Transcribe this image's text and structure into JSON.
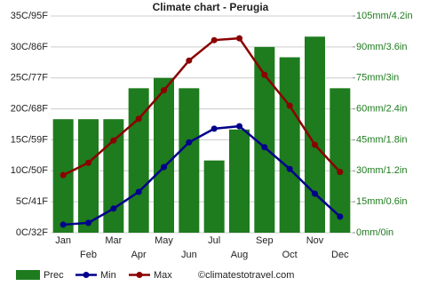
{
  "chart_data": {
    "type": "combo",
    "title": "Climate chart - Perugia",
    "categories": [
      "Jan",
      "Feb",
      "Mar",
      "Apr",
      "May",
      "Jun",
      "Jul",
      "Aug",
      "Sep",
      "Oct",
      "Nov",
      "Dec"
    ],
    "series": [
      {
        "name": "Prec",
        "type": "bar",
        "axis": "y2",
        "color": "#1e7b1e",
        "values": [
          55,
          55,
          55,
          70,
          75,
          70,
          35,
          50,
          90,
          85,
          95,
          70
        ]
      },
      {
        "name": "Min",
        "type": "line",
        "color": "#00008b",
        "values": [
          1.3,
          1.6,
          3.9,
          6.6,
          10.6,
          14.6,
          16.8,
          17.2,
          13.8,
          10.3,
          6.3,
          2.6
        ]
      },
      {
        "name": "Max",
        "type": "line",
        "color": "#8b0000",
        "values": [
          9.3,
          11.3,
          14.9,
          18.4,
          23,
          27.8,
          31.1,
          31.4,
          25.5,
          20.5,
          14.2,
          9.8
        ]
      }
    ],
    "ylim": [
      0,
      35
    ],
    "yticks": [
      {
        "value": 0,
        "label": "0C/32F"
      },
      {
        "value": 5,
        "label": "5C/41F"
      },
      {
        "value": 10,
        "label": "10C/50F"
      },
      {
        "value": 15,
        "label": "15C/59F"
      },
      {
        "value": 20,
        "label": "20C/68F"
      },
      {
        "value": 25,
        "label": "25C/77F"
      },
      {
        "value": 30,
        "label": "30C/86F"
      },
      {
        "value": 35,
        "label": "35C/95F"
      }
    ],
    "y2lim": [
      0,
      105
    ],
    "y2ticks": [
      {
        "value": 0,
        "label": "0mm/0in"
      },
      {
        "value": 15,
        "label": "15mm/0.6in"
      },
      {
        "value": 30,
        "label": "30mm/1.2in"
      },
      {
        "value": 45,
        "label": "45mm/1.8in"
      },
      {
        "value": 60,
        "label": "60mm/2.4in"
      },
      {
        "value": 75,
        "label": "75mm/3in"
      },
      {
        "value": 90,
        "label": "90mm/3.6in"
      },
      {
        "value": 105,
        "label": "105mm/4.2in"
      }
    ],
    "grid": true,
    "source": "©climatestotravel.com"
  }
}
